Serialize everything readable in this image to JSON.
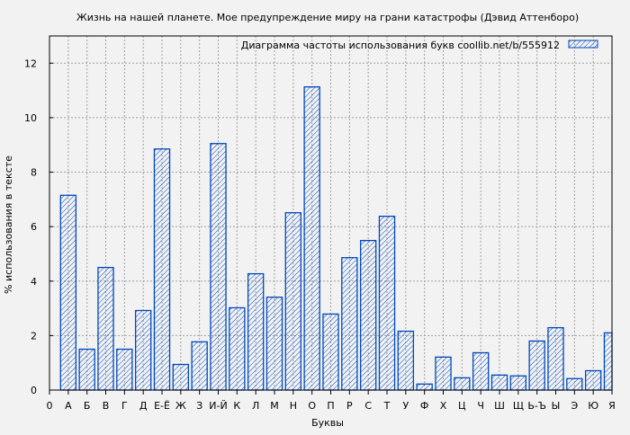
{
  "chart_data": {
    "type": "bar",
    "title": "Жизнь на нашей планете. Мое предупреждение миру на грани катастрофы (Дэвид Аттенборо)",
    "xlabel": "Буквы",
    "ylabel": "% использования в тексте",
    "legend": {
      "label": "Диаграмма частоты использования букв  coollib.net/b/555912",
      "placement": "top-right"
    },
    "x_origin_label": "0",
    "categories": [
      "А",
      "Б",
      "В",
      "Г",
      "Д",
      "Е-Ё",
      "Ж",
      "З",
      "И-Й",
      "К",
      "Л",
      "М",
      "Н",
      "О",
      "П",
      "Р",
      "С",
      "Т",
      "У",
      "Ф",
      "Х",
      "Ц",
      "Ч",
      "Ш",
      "Щ",
      "Ь-Ъ",
      "Ы",
      "Э",
      "Ю",
      "Я"
    ],
    "values": [
      7.15,
      1.5,
      4.5,
      1.5,
      2.92,
      8.85,
      0.94,
      1.77,
      9.05,
      3.02,
      4.27,
      3.41,
      6.51,
      11.13,
      2.79,
      4.86,
      5.49,
      6.38,
      2.16,
      0.22,
      1.21,
      0.45,
      1.37,
      0.55,
      0.52,
      1.8,
      2.29,
      0.42,
      0.71,
      2.1
    ],
    "ylim": [
      0,
      13
    ],
    "yticks": [
      0,
      2,
      4,
      6,
      8,
      10,
      12
    ],
    "xlim": [
      0,
      30
    ],
    "grid": true,
    "bar_color": "#0047bb",
    "background": "#f2f2f2"
  }
}
